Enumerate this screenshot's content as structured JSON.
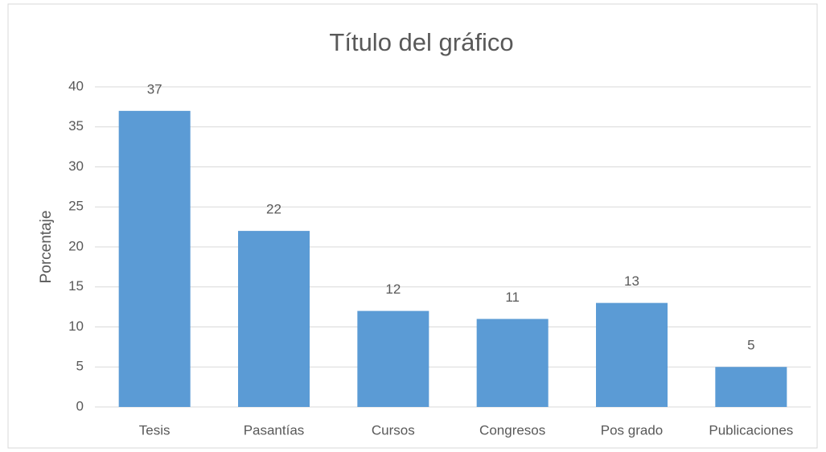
{
  "chart_data": {
    "type": "bar",
    "title": "Título del gráfico",
    "y_label": "Porcentaje",
    "categories": [
      "Tesis",
      "Pasantías",
      "Cursos",
      "Congresos",
      "Pos grado",
      "Publicaciones"
    ],
    "values": [
      37,
      22,
      12,
      11,
      13,
      5
    ],
    "color": "#5b9bd5",
    "ylim": [
      0,
      40
    ],
    "yticks": [
      0,
      5,
      10,
      15,
      20,
      25,
      30,
      35,
      40
    ],
    "grid": true
  }
}
